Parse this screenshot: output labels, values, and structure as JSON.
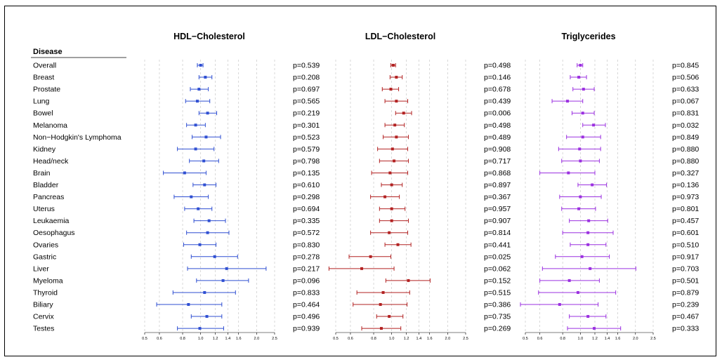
{
  "header": "Disease",
  "diseases": [
    "Overall",
    "Breast",
    "Prostate",
    "Lung",
    "Bowel",
    "Melanoma",
    "Non−Hodgkin's Lymphoma",
    "Kidney",
    "Head/neck",
    "Brain",
    "Bladder",
    "Pancreas",
    "Uterus",
    "Leukaemia",
    "Oesophagus",
    "Ovaries",
    "Gastric",
    "Liver",
    "Myeloma",
    "Thyroid",
    "Biliary",
    "Cervix",
    "Testes"
  ],
  "chart_data": [
    {
      "type": "forest",
      "title": "HDL−Cholesterol",
      "color": "#2f4fd2",
      "x_ticks": [
        "0.5",
        "0.6",
        "0.8",
        "1.0",
        "1.2",
        "1.4",
        "1.6",
        "2.0",
        "2.5"
      ],
      "x_tick_values": [
        0.5,
        0.6,
        0.8,
        1.0,
        1.2,
        1.4,
        1.6,
        2.0,
        2.5
      ],
      "estimates": [
        1.0,
        1.06,
        0.98,
        0.96,
        1.09,
        0.94,
        1.07,
        0.94,
        1.04,
        0.82,
        1.05,
        0.89,
        0.97,
        1.11,
        1.09,
        0.99,
        1.19,
        1.38,
        1.32,
        1.05,
        0.86,
        1.08,
        0.99
      ],
      "lower": [
        0.96,
        0.98,
        0.88,
        0.83,
        0.98,
        0.84,
        0.9,
        0.75,
        0.87,
        0.63,
        0.91,
        0.72,
        0.82,
        0.92,
        0.84,
        0.81,
        0.89,
        0.85,
        0.95,
        0.71,
        0.58,
        0.89,
        0.75
      ],
      "upper": [
        1.03,
        1.15,
        1.1,
        1.12,
        1.22,
        1.06,
        1.28,
        1.18,
        1.25,
        1.07,
        1.21,
        1.1,
        1.15,
        1.36,
        1.42,
        1.21,
        1.58,
        2.25,
        1.81,
        1.54,
        1.3,
        1.3,
        1.33
      ],
      "p_values": [
        "p=0.539",
        "p=0.208",
        "p=0.697",
        "p=0.565",
        "p=0.219",
        "p=0.301",
        "p=0.523",
        "p=0.579",
        "p=0.798",
        "p=0.135",
        "p=0.610",
        "p=0.298",
        "p=0.694",
        "p=0.335",
        "p=0.572",
        "p=0.830",
        "p=0.278",
        "p=0.217",
        "p=0.096",
        "p=0.833",
        "p=0.464",
        "p=0.496",
        "p=0.939"
      ]
    },
    {
      "type": "forest",
      "title": "LDL−Cholesterol",
      "color": "#b22222",
      "x_ticks": [
        "0.5",
        "0.6",
        "0.8",
        "1.0",
        "1.2",
        "1.4",
        "1.6",
        "2.0",
        "2.5"
      ],
      "x_tick_values": [
        0.5,
        0.6,
        0.8,
        1.0,
        1.2,
        1.4,
        1.6,
        2.0,
        2.5
      ],
      "estimates": [
        1.02,
        1.06,
        0.99,
        1.06,
        1.16,
        1.04,
        1.06,
        1.01,
        1.03,
        0.98,
        1.0,
        0.92,
        1.0,
        1.0,
        0.97,
        1.08,
        0.77,
        0.69,
        1.23,
        0.9,
        0.87,
        0.97,
        0.88
      ],
      "lower": [
        0.99,
        0.98,
        0.89,
        0.92,
        1.05,
        0.92,
        0.9,
        0.84,
        0.86,
        0.78,
        0.88,
        0.77,
        0.86,
        0.86,
        0.77,
        0.92,
        0.59,
        0.46,
        0.93,
        0.65,
        0.62,
        0.83,
        0.69
      ],
      "upper": [
        1.05,
        1.14,
        1.09,
        1.22,
        1.28,
        1.17,
        1.23,
        1.22,
        1.23,
        1.22,
        1.14,
        1.1,
        1.18,
        1.23,
        1.22,
        1.27,
        0.99,
        1.03,
        1.61,
        1.25,
        1.21,
        1.15,
        1.12
      ],
      "p_values": [
        "p=0.498",
        "p=0.146",
        "p=0.678",
        "p=0.439",
        "p=0.006",
        "p=0.498",
        "p=0.489",
        "p=0.908",
        "p=0.717",
        "p=0.868",
        "p=0.897",
        "p=0.367",
        "p=0.957",
        "p=0.907",
        "p=0.814",
        "p=0.441",
        "p=0.025",
        "p=0.062",
        "p=0.152",
        "p=0.515",
        "p=0.386",
        "p=0.735",
        "p=0.269"
      ]
    },
    {
      "type": "forest",
      "title": "Triglycerides",
      "color": "#9b30e0",
      "x_ticks": [
        "0.5",
        "0.6",
        "0.8",
        "1.0",
        "1.2",
        "1.4",
        "1.6",
        "2.0",
        "2.5"
      ],
      "x_tick_values": [
        0.5,
        0.6,
        0.8,
        1.0,
        1.2,
        1.4,
        1.6,
        2.0,
        2.5
      ],
      "estimates": [
        1.0,
        0.98,
        1.04,
        0.85,
        1.03,
        1.18,
        1.03,
        0.99,
        1.0,
        0.86,
        1.16,
        1.0,
        0.98,
        1.11,
        1.1,
        1.1,
        1.02,
        1.13,
        0.87,
        0.97,
        0.77,
        1.1,
        1.19
      ],
      "lower": [
        0.96,
        0.88,
        0.91,
        0.7,
        0.9,
        1.03,
        0.84,
        0.76,
        0.79,
        0.6,
        0.97,
        0.77,
        0.79,
        0.87,
        0.8,
        0.88,
        0.73,
        0.62,
        0.6,
        0.59,
        0.47,
        0.87,
        0.85
      ],
      "upper": [
        1.03,
        1.08,
        1.19,
        1.03,
        1.19,
        1.37,
        1.29,
        1.29,
        1.27,
        1.2,
        1.39,
        1.3,
        1.21,
        1.41,
        1.51,
        1.38,
        1.44,
        2.01,
        1.27,
        1.56,
        1.25,
        1.38,
        1.66
      ],
      "p_values": [
        "p=0.845",
        "p=0.506",
        "p=0.633",
        "p=0.067",
        "p=0.831",
        "p=0.032",
        "p=0.849",
        "p=0.880",
        "p=0.880",
        "p=0.327",
        "p=0.136",
        "p=0.973",
        "p=0.801",
        "p=0.457",
        "p=0.601",
        "p=0.510",
        "p=0.917",
        "p=0.703",
        "p=0.501",
        "p=0.879",
        "p=0.239",
        "p=0.467",
        "p=0.333"
      ]
    }
  ]
}
